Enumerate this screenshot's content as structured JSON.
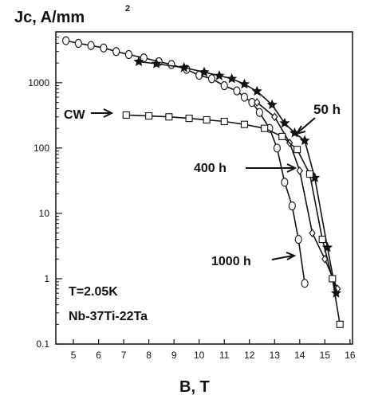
{
  "chart_data": {
    "type": "line",
    "title": "",
    "xlabel": "B, T",
    "ylabel": "Jc, A/mm",
    "ylabel_superscript": "2",
    "xscale": "linear",
    "yscale": "log",
    "xlim": [
      4.3,
      16.1
    ],
    "ylim": [
      0.1,
      6000
    ],
    "x_ticks": [
      5,
      6,
      7,
      8,
      9,
      10,
      11,
      12,
      13,
      14,
      15,
      16
    ],
    "x_tick_labels": [
      "5",
      "6",
      "7",
      "8",
      "9",
      "10",
      "11",
      "12",
      "13",
      "14",
      "15",
      "16"
    ],
    "y_ticks": [
      0.1,
      1,
      10,
      100,
      1000
    ],
    "y_tick_labels": [
      "0.1",
      "1",
      "10",
      "100",
      "1000"
    ],
    "grid": false,
    "legend": "none",
    "text_annotations": [
      "CW",
      "50 h",
      "400 h",
      "1000 h",
      "T=2.05K",
      "Nb-37Ti-22Ta"
    ],
    "series": [
      {
        "name": "1000 h",
        "marker": "circle",
        "x": [
          4.7,
          5.2,
          5.7,
          6.2,
          6.7,
          7.2,
          7.8,
          8.4,
          8.9,
          9.5,
          10.0,
          10.5,
          11.0,
          11.5,
          11.8,
          12.1,
          12.4,
          12.8,
          13.1,
          13.4,
          13.7,
          13.95,
          14.2
        ],
        "y": [
          4400,
          4000,
          3700,
          3400,
          3000,
          2700,
          2400,
          2100,
          1900,
          1600,
          1300,
          1150,
          900,
          750,
          600,
          500,
          350,
          200,
          100,
          30,
          13,
          4,
          0.85
        ]
      },
      {
        "name": "400 h",
        "marker": "diamond",
        "x": [
          12.3,
          13.0,
          13.6,
          14.0,
          14.5,
          15.0,
          15.5
        ],
        "y": [
          500,
          300,
          120,
          45,
          5,
          2,
          0.7
        ]
      },
      {
        "name": "50 h",
        "marker": "star",
        "x": [
          7.6,
          8.3,
          9.4,
          10.2,
          10.8,
          11.3,
          11.8,
          12.3,
          12.9,
          13.4,
          13.8,
          14.2,
          14.6,
          15.1,
          15.45
        ],
        "y": [
          2100,
          1950,
          1700,
          1450,
          1280,
          1150,
          950,
          740,
          460,
          240,
          170,
          130,
          35,
          3,
          0.6
        ]
      },
      {
        "name": "CW",
        "marker": "square",
        "x": [
          7.1,
          8.0,
          8.8,
          9.6,
          10.3,
          11.0,
          11.8,
          12.6,
          13.3,
          13.9,
          14.4,
          14.9,
          15.3,
          15.6
        ],
        "y": [
          320,
          310,
          300,
          285,
          270,
          255,
          230,
          200,
          150,
          95,
          40,
          4,
          1,
          0.2
        ]
      }
    ]
  }
}
